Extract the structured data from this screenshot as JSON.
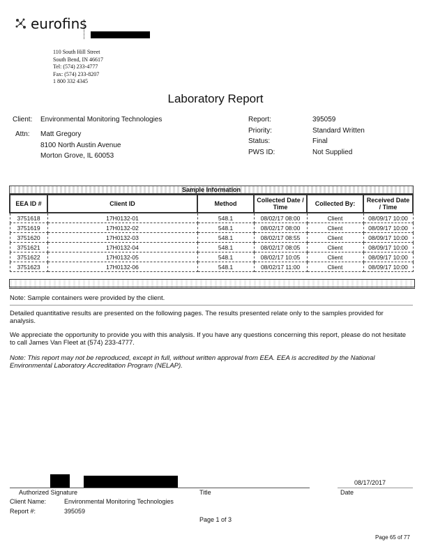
{
  "header": {
    "logo_text": "eurofins",
    "address": [
      "110 South Hill Street",
      "South Bend, IN 46617",
      "Tel: (574) 233-4777",
      "Fax: (574) 233-8207",
      "1 800 332 4345"
    ]
  },
  "title": "Laboratory Report",
  "client": {
    "client_label": "Client:",
    "client_value": "Environmental Monitoring Technologies",
    "attn_label": "Attn:",
    "attn_lines": [
      "Matt Gregory",
      "8100 North Austin Avenue",
      "Morton Grove, IL 60053"
    ]
  },
  "report": {
    "rows": [
      {
        "label": "Report:",
        "value": "395059"
      },
      {
        "label": "Priority:",
        "value": "Standard Written"
      },
      {
        "label": "Status:",
        "value": "Final"
      },
      {
        "label": "PWS ID:",
        "value": "Not Supplied"
      }
    ]
  },
  "samples": {
    "caption": "Sample Information",
    "headers": [
      "EEA ID #",
      "Client ID",
      "Method",
      "Collected Date / Time",
      "Collected By:",
      "Received Date / Time"
    ],
    "rows": [
      [
        "3751618",
        "17H0132-01",
        "548.1",
        "08/02/17 08:00",
        "Client",
        "08/09/17 10:00"
      ],
      [
        "3751619",
        "17H0132-02",
        "548.1",
        "08/02/17 08:00",
        "Client",
        "08/09/17 10:00"
      ],
      [
        "3751620",
        "17H0132-03",
        "548.1",
        "08/02/17 08:55",
        "Client",
        "08/09/17 10:00"
      ],
      [
        "3751621",
        "17H0132-04",
        "548.1",
        "08/02/17 08:05",
        "Client",
        "08/09/17 10:00"
      ],
      [
        "3751622",
        "17H0132-05",
        "548.1",
        "08/02/17 10:05",
        "Client",
        "08/09/17 10:00"
      ],
      [
        "3751623",
        "17H0132-06",
        "548.1",
        "08/02/17 11:00",
        "Client",
        "08/09/17 10:00"
      ]
    ]
  },
  "notes": {
    "containers": "Note: Sample containers were provided by the client.",
    "results": "Detailed quantitative results are presented on the following pages. The results presented relate only to the samples provided for analysis.",
    "thanks": "We appreciate the opportunity to provide you with this analysis. If you have any questions concerning this report, please do not hesitate to call James Van Fleet at (574) 233-4777.",
    "disclaimer": "Note: This report may not be reproduced, except in full, without written approval from EEA. EEA is accredited by the National Environmental Laboratory Accreditation Program (NELAP)."
  },
  "signature": {
    "date_value": "08/17/2017",
    "signature_label": "Authorized Signature",
    "title_label": "Title",
    "date_label": "Date"
  },
  "footer": {
    "client_name_label": "Client Name:",
    "client_name_value": "Environmental Monitoring Technologies",
    "report_label": "Report #:",
    "report_value": "395059",
    "page": "Page 1 of 3",
    "page_total": "Page 65 of 77"
  }
}
